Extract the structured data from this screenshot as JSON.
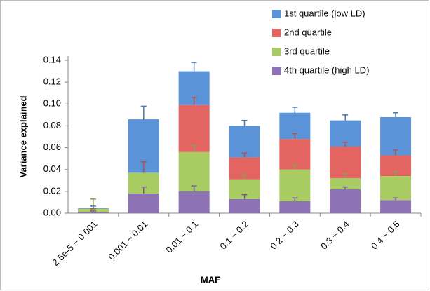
{
  "chart_data": {
    "type": "stacked_bar",
    "x_label": "MAF",
    "y_label": "Variance explained",
    "categories": [
      "2.5e-5 ~ 0.001",
      "0.001 ~ 0.01",
      "0.01 ~ 0.1",
      "0.1 ~ 0.2",
      "0.2 ~ 0.3",
      "0.3 ~ 0.4",
      "0.4 ~ 0.5"
    ],
    "series": [
      {
        "name": "4th quartile (high LD)",
        "color": "#8e72b6",
        "values": [
          0.001,
          0.018,
          0.02,
          0.013,
          0.011,
          0.022,
          0.012
        ],
        "errors": [
          0.001,
          0.006,
          0.005,
          0.004,
          0.003,
          0.002,
          0.002
        ]
      },
      {
        "name": "3rd quartile",
        "color": "#a9cc62",
        "values": [
          0.003,
          0.019,
          0.036,
          0.018,
          0.029,
          0.01,
          0.022
        ],
        "errors": [
          0.009,
          0.01,
          0.006,
          0.004,
          0.004,
          0.004,
          0.004
        ]
      },
      {
        "name": "2nd quartile",
        "color": "#e36461",
        "values": [
          0,
          0,
          0.043,
          0.02,
          0.028,
          0.029,
          0.019
        ],
        "errors": [
          0,
          0.01,
          0.007,
          0.004,
          0.005,
          0.004,
          0.005
        ]
      },
      {
        "name": "1st quartile (low LD)",
        "color": "#5b93d8",
        "values": [
          0.0005,
          0.049,
          0.031,
          0.029,
          0.024,
          0.024,
          0.035
        ],
        "errors": [
          0.002,
          0.012,
          0.008,
          0.005,
          0.005,
          0.005,
          0.004
        ]
      }
    ],
    "ylim": [
      0,
      0.14
    ],
    "yticks": [
      {
        "value": 0,
        "label": "0.00"
      },
      {
        "value": 0.02,
        "label": "0.02"
      },
      {
        "value": 0.04,
        "label": "0.04"
      },
      {
        "value": 0.06,
        "label": "0.06"
      },
      {
        "value": 0.08,
        "label": "0.08"
      },
      {
        "value": 0.1,
        "label": "0.10"
      },
      {
        "value": 0.12,
        "label": "0.12"
      },
      {
        "value": 0.14,
        "label": "0.14"
      }
    ],
    "grid": false
  }
}
